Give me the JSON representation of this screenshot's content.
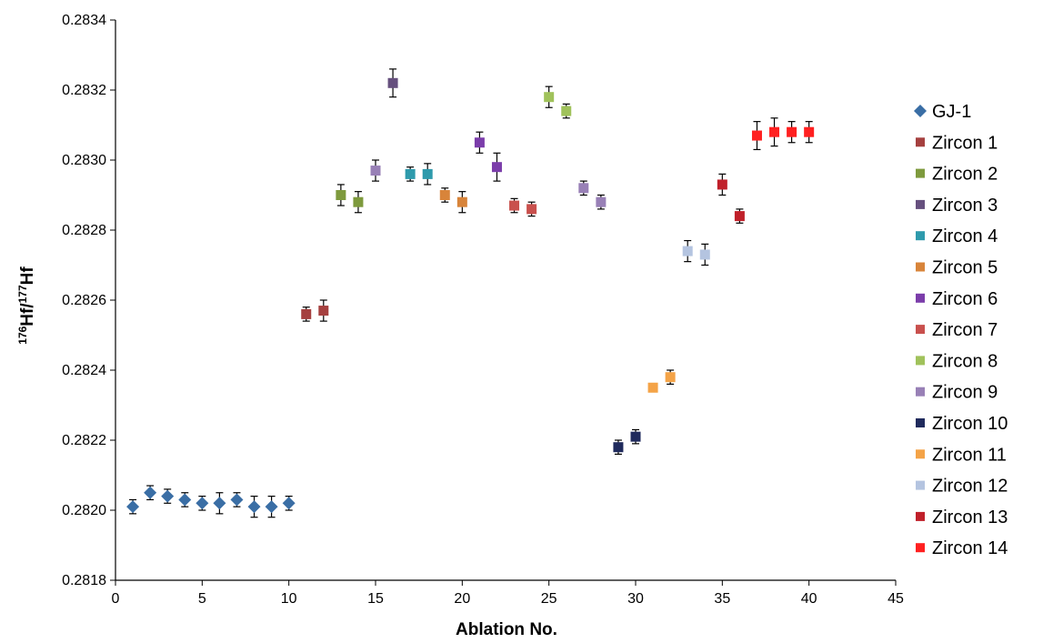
{
  "chart_data": {
    "type": "scatter",
    "xlabel": "Ablation No.",
    "ylabel_prefix_sup": "176",
    "ylabel_mid": "Hf/",
    "ylabel_mid_sup": "177",
    "ylabel_suffix": "Hf",
    "xlim": [
      0,
      45
    ],
    "ylim": [
      0.2818,
      0.2834
    ],
    "x_ticks": [
      "0",
      "5",
      "10",
      "15",
      "20",
      "25",
      "30",
      "35",
      "40",
      "45"
    ],
    "y_ticks": [
      "0.2818",
      "0.2820",
      "0.2822",
      "0.2824",
      "0.2826",
      "0.2828",
      "0.2830",
      "0.2832",
      "0.2834"
    ],
    "x_tick_values": [
      0,
      5,
      10,
      15,
      20,
      25,
      30,
      35,
      40,
      45
    ],
    "y_tick_values": [
      0.2818,
      0.282,
      0.2822,
      0.2824,
      0.2826,
      0.2828,
      0.283,
      0.2832,
      0.2834
    ],
    "grid": false,
    "legend_position": "right",
    "error_bars": true,
    "series": [
      {
        "name": "GJ-1",
        "marker": "diamond",
        "color": "#3A6EA5",
        "points": [
          [
            1,
            0.28201,
            2e-05
          ],
          [
            2,
            0.28205,
            2e-05
          ],
          [
            3,
            0.28204,
            2e-05
          ],
          [
            4,
            0.28203,
            2e-05
          ],
          [
            5,
            0.28202,
            2e-05
          ],
          [
            6,
            0.28202,
            3e-05
          ],
          [
            7,
            0.28203,
            2e-05
          ],
          [
            8,
            0.28201,
            3e-05
          ],
          [
            9,
            0.28201,
            3e-05
          ],
          [
            10,
            0.28202,
            2e-05
          ]
        ]
      },
      {
        "name": "Zircon 1",
        "marker": "square",
        "color": "#A5403F",
        "points": [
          [
            11,
            0.28256,
            2e-05
          ],
          [
            12,
            0.28257,
            3e-05
          ]
        ]
      },
      {
        "name": "Zircon 2",
        "marker": "square",
        "color": "#7E9A3D",
        "points": [
          [
            13,
            0.2829,
            3e-05
          ],
          [
            14,
            0.28288,
            3e-05
          ]
        ]
      },
      {
        "name": "Zircon 3",
        "marker": "square",
        "color": "#66507E",
        "points": [
          [
            16,
            0.28322,
            4e-05
          ]
        ]
      },
      {
        "name": "Zircon 4",
        "marker": "square",
        "color": "#2E9AAC",
        "points": [
          [
            17,
            0.28296,
            2e-05
          ],
          [
            18,
            0.28296,
            3e-05
          ]
        ]
      },
      {
        "name": "Zircon 5",
        "marker": "square",
        "color": "#D8843A",
        "points": [
          [
            19,
            0.2829,
            2e-05
          ],
          [
            20,
            0.28288,
            3e-05
          ]
        ]
      },
      {
        "name": "Zircon 6",
        "marker": "square",
        "color": "#7B3DAA",
        "points": [
          [
            21,
            0.28305,
            3e-05
          ],
          [
            22,
            0.28298,
            4e-05
          ]
        ]
      },
      {
        "name": "Zircon 7",
        "marker": "square",
        "color": "#C9504D",
        "points": [
          [
            23,
            0.28287,
            2e-05
          ],
          [
            24,
            0.28286,
            2e-05
          ]
        ]
      },
      {
        "name": "Zircon 8",
        "marker": "square",
        "color": "#A0C25B",
        "points": [
          [
            25,
            0.28318,
            3e-05
          ],
          [
            26,
            0.28314,
            2e-05
          ]
        ]
      },
      {
        "name": "Zircon 9",
        "marker": "square",
        "color": "#9880B6",
        "points": [
          [
            15,
            0.28297,
            3e-05
          ],
          [
            27,
            0.28292,
            2e-05
          ],
          [
            28,
            0.28288,
            2e-05
          ]
        ]
      },
      {
        "name": "Zircon 10",
        "marker": "square",
        "color": "#1F2A5C",
        "points": [
          [
            29,
            0.28218,
            2e-05
          ],
          [
            30,
            0.28221,
            2e-05
          ]
        ]
      },
      {
        "name": "Zircon 11",
        "marker": "square",
        "color": "#F4A347",
        "points": [
          [
            31,
            0.28235,
            1e-05
          ],
          [
            32,
            0.28238,
            2e-05
          ]
        ]
      },
      {
        "name": "Zircon 12",
        "marker": "square",
        "color": "#B4C4E0",
        "points": [
          [
            33,
            0.28274,
            3e-05
          ],
          [
            34,
            0.28273,
            3e-05
          ]
        ]
      },
      {
        "name": "Zircon 13",
        "marker": "square",
        "color": "#C0202A",
        "points": [
          [
            35,
            0.28293,
            3e-05
          ],
          [
            36,
            0.28284,
            2e-05
          ]
        ]
      },
      {
        "name": "Zircon 14",
        "marker": "square",
        "color": "#FF2020",
        "points": [
          [
            37,
            0.28307,
            4e-05
          ],
          [
            38,
            0.28308,
            4e-05
          ],
          [
            39,
            0.28308,
            3e-05
          ],
          [
            40,
            0.28308,
            3e-05
          ]
        ]
      }
    ]
  }
}
